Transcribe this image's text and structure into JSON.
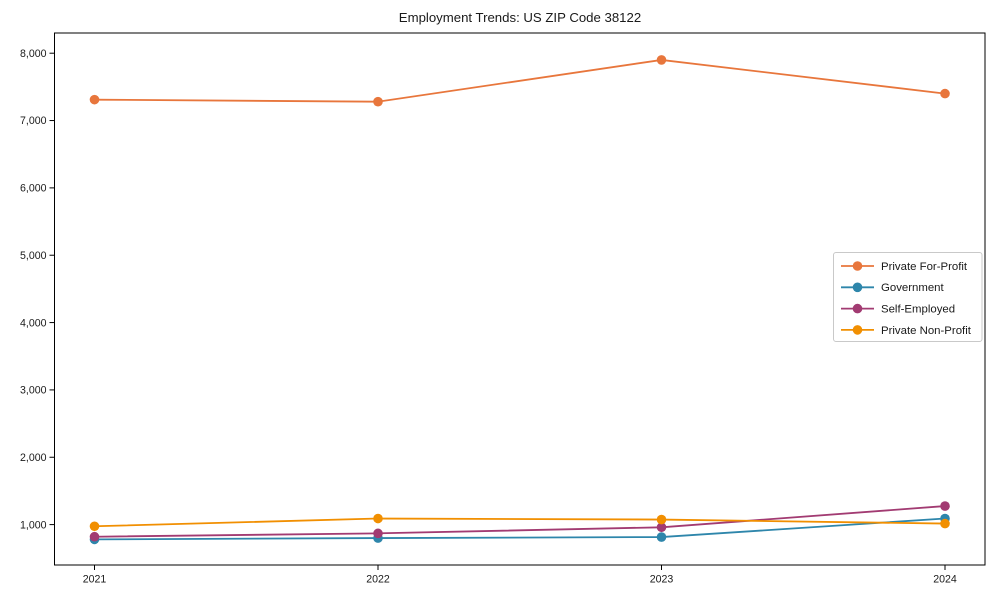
{
  "title": "Employment Trends: US ZIP Code 38122",
  "chart_data": {
    "type": "line",
    "title": "Employment Trends: US ZIP Code 38122",
    "xlabel": "",
    "ylabel": "",
    "categories": [
      "2021",
      "2022",
      "2023",
      "2024"
    ],
    "series": [
      {
        "name": "Private For-Profit",
        "color": "#E8763C",
        "values": [
          7310,
          7280,
          7900,
          7400
        ]
      },
      {
        "name": "Government",
        "color": "#2E86AB",
        "values": [
          780,
          800,
          815,
          1090
        ]
      },
      {
        "name": "Self-Employed",
        "color": "#A23B72",
        "values": [
          820,
          870,
          960,
          1275
        ]
      },
      {
        "name": "Private Non-Profit",
        "color": "#F18F01",
        "values": [
          975,
          1090,
          1075,
          1015
        ]
      }
    ],
    "ylim": [
      400,
      8300
    ],
    "yticks": [
      1000,
      2000,
      3000,
      4000,
      5000,
      6000,
      7000,
      8000
    ],
    "ytick_labels": [
      "1,000",
      "2,000",
      "3,000",
      "4,000",
      "5,000",
      "6,000",
      "7,000",
      "8,000"
    ],
    "grid": false,
    "legend_position": "center-right",
    "marker": "circle",
    "axis_color": "#000000",
    "legend_border_color": "#c9c9c9",
    "background_color": "#ffffff"
  }
}
